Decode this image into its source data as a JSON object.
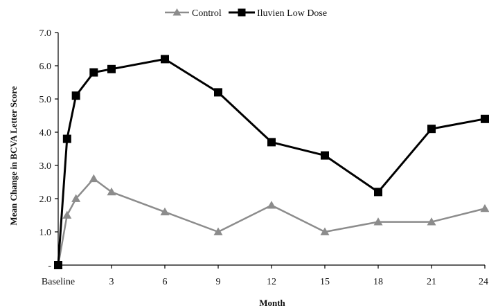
{
  "chart_data": {
    "type": "line",
    "title": "",
    "xlabel": "Month",
    "ylabel": "Mean Change in BCVA Letter Score",
    "xlim": [
      0,
      24
    ],
    "ylim": [
      0,
      7
    ],
    "x_ticks": [
      {
        "value": 0,
        "label": "Baseline"
      },
      {
        "value": 3,
        "label": "3"
      },
      {
        "value": 6,
        "label": "6"
      },
      {
        "value": 9,
        "label": "9"
      },
      {
        "value": 12,
        "label": "12"
      },
      {
        "value": 15,
        "label": "15"
      },
      {
        "value": 18,
        "label": "18"
      },
      {
        "value": 21,
        "label": "21"
      },
      {
        "value": 24,
        "label": "24"
      }
    ],
    "y_ticks": [
      {
        "value": 0,
        "label": "-"
      },
      {
        "value": 1,
        "label": "1.0"
      },
      {
        "value": 2,
        "label": "2.0"
      },
      {
        "value": 3,
        "label": "3.0"
      },
      {
        "value": 4,
        "label": "4.0"
      },
      {
        "value": 5,
        "label": "5.0"
      },
      {
        "value": 6,
        "label": "6.0"
      },
      {
        "value": 7,
        "label": "7.0"
      }
    ],
    "legend_position": "top-center",
    "grid": false,
    "series": [
      {
        "name": "Control",
        "color": "#8c8c8c",
        "marker": "triangle",
        "x": [
          0,
          0.5,
          1,
          2,
          3,
          6,
          9,
          12,
          15,
          18,
          21,
          24
        ],
        "values": [
          0,
          1.5,
          2.0,
          2.6,
          2.2,
          1.6,
          1.0,
          1.8,
          1.0,
          1.3,
          1.3,
          1.7
        ]
      },
      {
        "name": "Iluvien Low Dose",
        "color": "#000000",
        "marker": "square",
        "x": [
          0,
          0.5,
          1,
          2,
          3,
          6,
          9,
          12,
          15,
          18,
          21,
          24
        ],
        "values": [
          0,
          3.8,
          5.1,
          5.8,
          5.9,
          6.2,
          5.2,
          3.7,
          3.3,
          2.2,
          4.1,
          4.4
        ]
      }
    ]
  }
}
